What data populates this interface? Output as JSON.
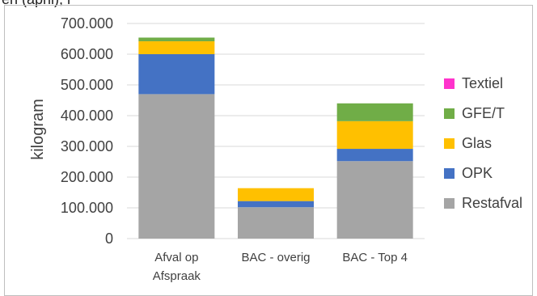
{
  "chart_data": {
    "type": "bar",
    "stacked": true,
    "ylabel": "kilogram",
    "ylim": [
      0,
      700000
    ],
    "y_ticks": [
      "0",
      "100.000",
      "200.000",
      "300.000",
      "400.000",
      "500.000",
      "600.000",
      "700.000"
    ],
    "categories": [
      [
        "Afval op",
        "Afspraak"
      ],
      [
        "BAC - overig"
      ],
      [
        "BAC - Top 4"
      ]
    ],
    "series": [
      {
        "name": "Restafval",
        "color": "#a5a5a5",
        "values": [
          470000,
          102000,
          252000
        ]
      },
      {
        "name": "OPK",
        "color": "#4472c4",
        "values": [
          130000,
          20000,
          40000
        ]
      },
      {
        "name": "Glas",
        "color": "#ffc000",
        "values": [
          42000,
          42000,
          90000
        ]
      },
      {
        "name": "GFE/T",
        "color": "#70ad47",
        "values": [
          12000,
          0,
          58000
        ]
      },
      {
        "name": "Textiel",
        "color": "#ff33cc",
        "values": [
          0,
          0,
          0
        ]
      }
    ],
    "legend_order": [
      "Textiel",
      "GFE/T",
      "Glas",
      "OPK",
      "Restafval"
    ],
    "grid": true,
    "legend": "right"
  },
  "cut_text": "en (april), r"
}
